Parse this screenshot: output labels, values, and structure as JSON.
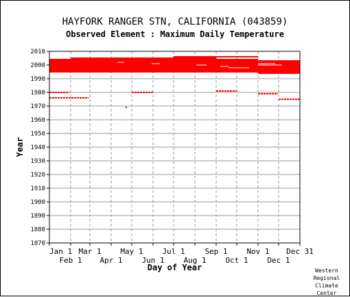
{
  "chart_data": {
    "type": "scatter",
    "title": "HAYFORK RANGER STN, CALIFORNIA   (043859)",
    "subtitle": "Observed Element : Maximum Daily Temperature",
    "xlabel": "Day of Year",
    "ylabel": "Year",
    "ylim": [
      1870,
      2010
    ],
    "yticks": [
      1870,
      1880,
      1890,
      1900,
      1910,
      1920,
      1930,
      1940,
      1950,
      1960,
      1970,
      1980,
      1990,
      2000,
      2010
    ],
    "xlim": [
      1,
      366
    ],
    "xticks_top": [
      {
        "label": "Jan 1",
        "day": 1
      },
      {
        "label": "Mar 1",
        "day": 60
      },
      {
        "label": "May 1",
        "day": 121
      },
      {
        "label": "Jul 1",
        "day": 182
      },
      {
        "label": "Sep 1",
        "day": 244
      },
      {
        "label": "Nov 1",
        "day": 305
      },
      {
        "label": "Dec 31",
        "day": 366
      }
    ],
    "xticks_bottom": [
      {
        "label": "Feb 1",
        "day": 32
      },
      {
        "label": "Apr 1",
        "day": 91
      },
      {
        "label": "Jun 1",
        "day": 152
      },
      {
        "label": "Aug 1",
        "day": 213
      },
      {
        "label": "Oct 1",
        "day": 274
      },
      {
        "label": "Dec 1",
        "day": 335
      }
    ],
    "grid": true,
    "color": "#ff0000",
    "dense_blocks": [
      {
        "year_from": 1995,
        "year_to": 2004,
        "day_from": 1,
        "day_to": 305
      },
      {
        "year_from": 1994,
        "year_to": 2003,
        "day_from": 305,
        "day_to": 366
      }
    ],
    "extra_rows": [
      {
        "year": 2005,
        "day_from": 32,
        "day_to": 244,
        "dashed": false
      },
      {
        "year": 2006,
        "day_from": 182,
        "day_to": 305,
        "dashed": false
      },
      {
        "year": 1980,
        "day_from": 1,
        "day_to": 30,
        "dashed": true
      },
      {
        "year": 1976,
        "day_from": 1,
        "day_to": 58,
        "dashed": true
      },
      {
        "year": 1980,
        "day_from": 121,
        "day_to": 152,
        "dashed": true
      },
      {
        "year": 1969,
        "day_from": 112,
        "day_to": 114,
        "dashed": false
      },
      {
        "year": 1981,
        "day_from": 244,
        "day_to": 274,
        "dashed": true
      },
      {
        "year": 1979,
        "day_from": 305,
        "day_to": 334,
        "dashed": true
      },
      {
        "year": 1975,
        "day_from": 335,
        "day_to": 366,
        "dashed": true
      }
    ],
    "credit": [
      "Western",
      "Regional",
      "Climate",
      "Center"
    ]
  }
}
